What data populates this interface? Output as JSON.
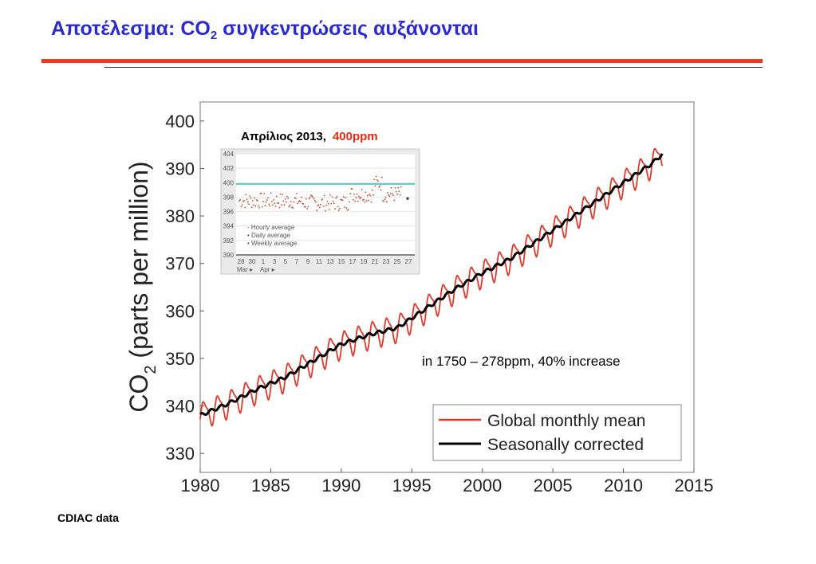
{
  "slide": {
    "title_prefix": "Αποτέλεσμα: CO",
    "title_sub": "2",
    "title_suffix": " συγκεντρώσεις αυξάνονται",
    "footnote": "CDIAC data",
    "colors": {
      "title": "#2a2ad0",
      "rule": "#ee3a1f"
    }
  },
  "chart_data": [
    {
      "type": "line",
      "ylabel_main": "CO",
      "ylabel_sub": "2",
      "ylabel_rest": " (parts per million)",
      "xlim": [
        1980,
        2015
      ],
      "ylim": [
        326,
        404
      ],
      "x_ticks": [
        "1980",
        "1985",
        "1990",
        "1995",
        "2000",
        "2005",
        "2010",
        "2015"
      ],
      "y_ticks": [
        "330",
        "340",
        "350",
        "360",
        "370",
        "380",
        "390",
        "400"
      ],
      "grid": false,
      "legend_position": "bottom-right",
      "series": [
        {
          "name": "Global monthly mean",
          "color": "#e03a2a",
          "seasonal_amplitude_ppm": 2.6
        },
        {
          "name": "Seasonally corrected",
          "color": "#000000",
          "x": [
            1980,
            1982,
            1984,
            1986,
            1988,
            1990,
            1992,
            1994,
            1996,
            1998,
            2000,
            2002,
            2004,
            2006,
            2008,
            2010,
            2012,
            2012.75
          ],
          "values": [
            338,
            340.5,
            343.5,
            346,
            349.5,
            353,
            355,
            356.5,
            360.5,
            364.5,
            368,
            371,
            375,
            379,
            383,
            387,
            391,
            393
          ]
        }
      ],
      "annotation": "in 1750 – 278ppm, 40% increase",
      "inset": {
        "title": "Απρίλιος 2013,",
        "title_value": "400ppm",
        "title_value_color": "#e52b12",
        "y_ticks": [
          "404",
          "402",
          "400",
          "398",
          "396",
          "394",
          "392",
          "390"
        ],
        "x_ticks": [
          "28",
          "30",
          "1",
          "3",
          "5",
          "7",
          "9",
          "11",
          "13",
          "15",
          "17",
          "19",
          "21",
          "23",
          "25",
          "27"
        ],
        "month_labels": [
          "Mar ▸",
          "Apr ▸"
        ],
        "reference_line": 400,
        "legend": [
          "- Hourly average",
          "• Daily average",
          "• Weekly average"
        ]
      }
    }
  ]
}
